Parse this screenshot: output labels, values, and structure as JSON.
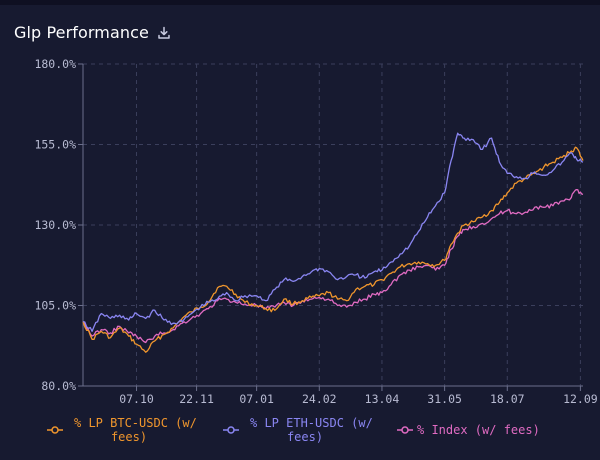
{
  "header": {
    "title": "Glp Performance",
    "download_icon": "download-icon"
  },
  "colors": {
    "background": "#171a30",
    "grid": "#3b3f5c",
    "axis_text": "#b8bbd2",
    "btc": "#f0962d",
    "eth": "#8a86f2",
    "index": "#e06bc2"
  },
  "chart_data": {
    "type": "line",
    "title": "",
    "xlabel": "",
    "ylabel": "",
    "ylim": [
      80,
      180
    ],
    "y_ticks": [
      "80.0%",
      "105.0%",
      "130.0%",
      "155.0%",
      "180.0%"
    ],
    "y_tick_values": [
      80,
      105,
      130,
      155,
      180
    ],
    "x_range": [
      "2021-08-27",
      "2022-09-14"
    ],
    "x_ticks": [
      {
        "date": "2021-10-07",
        "label": "07.10"
      },
      {
        "date": "2021-11-22",
        "label": "22.11"
      },
      {
        "date": "2022-01-07",
        "label": "07.01"
      },
      {
        "date": "2022-02-24",
        "label": "24.02"
      },
      {
        "date": "2022-04-13",
        "label": "13.04"
      },
      {
        "date": "2022-05-31",
        "label": "31.05"
      },
      {
        "date": "2022-07-18",
        "label": "18.07"
      },
      {
        "date": "2022-09-12",
        "label": "12.09"
      }
    ],
    "grid": true,
    "legend": "bottom",
    "series": [
      {
        "name": "% LP BTC-USDC (w/ fees)",
        "legend_lines": [
          "% LP BTC-USDC (w/",
          "fees)"
        ],
        "color": "#f0962d",
        "points": [
          [
            "2021-08-27",
            100.0
          ],
          [
            "2021-09-03",
            94.5
          ],
          [
            "2021-09-10",
            97.0
          ],
          [
            "2021-09-17",
            95.0
          ],
          [
            "2021-09-24",
            98.0
          ],
          [
            "2021-10-01",
            95.5
          ],
          [
            "2021-10-07",
            93.0
          ],
          [
            "2021-10-14",
            90.5
          ],
          [
            "2021-10-21",
            94.0
          ],
          [
            "2021-10-28",
            96.0
          ],
          [
            "2021-11-04",
            98.0
          ],
          [
            "2021-11-11",
            101.0
          ],
          [
            "2021-11-18",
            103.0
          ],
          [
            "2021-11-25",
            104.5
          ],
          [
            "2021-12-01",
            106.0
          ],
          [
            "2021-12-08",
            110.5
          ],
          [
            "2021-12-15",
            111.0
          ],
          [
            "2021-12-22",
            108.5
          ],
          [
            "2021-12-29",
            106.0
          ],
          [
            "2022-01-07",
            105.0
          ],
          [
            "2022-01-14",
            104.0
          ],
          [
            "2022-01-21",
            103.5
          ],
          [
            "2022-01-28",
            107.0
          ],
          [
            "2022-02-04",
            105.5
          ],
          [
            "2022-02-11",
            106.5
          ],
          [
            "2022-02-18",
            107.5
          ],
          [
            "2022-02-24",
            108.0
          ],
          [
            "2022-03-03",
            109.0
          ],
          [
            "2022-03-10",
            107.0
          ],
          [
            "2022-03-17",
            106.5
          ],
          [
            "2022-03-24",
            110.0
          ],
          [
            "2022-03-31",
            111.0
          ],
          [
            "2022-04-07",
            111.5
          ],
          [
            "2022-04-13",
            113.0
          ],
          [
            "2022-04-20",
            115.0
          ],
          [
            "2022-04-27",
            117.0
          ],
          [
            "2022-05-04",
            118.0
          ],
          [
            "2022-05-11",
            118.5
          ],
          [
            "2022-05-18",
            118.0
          ],
          [
            "2022-05-24",
            117.5
          ],
          [
            "2022-05-31",
            119.0
          ],
          [
            "2022-06-05",
            124.0
          ],
          [
            "2022-06-10",
            127.5
          ],
          [
            "2022-06-15",
            130.0
          ],
          [
            "2022-06-22",
            131.0
          ],
          [
            "2022-06-29",
            132.5
          ],
          [
            "2022-07-06",
            134.5
          ],
          [
            "2022-07-12",
            137.0
          ],
          [
            "2022-07-18",
            140.0
          ],
          [
            "2022-07-25",
            143.0
          ],
          [
            "2022-08-01",
            144.5
          ],
          [
            "2022-08-08",
            146.0
          ],
          [
            "2022-08-15",
            148.0
          ],
          [
            "2022-08-22",
            149.5
          ],
          [
            "2022-08-29",
            151.0
          ],
          [
            "2022-09-05",
            153.0
          ],
          [
            "2022-09-09",
            154.0
          ],
          [
            "2022-09-14",
            150.0
          ]
        ]
      },
      {
        "name": "% LP ETH-USDC (w/ fees)",
        "legend_lines": [
          "% LP ETH-USDC (w/",
          "fees)"
        ],
        "color": "#8a86f2",
        "points": [
          [
            "2021-08-27",
            100.0
          ],
          [
            "2021-09-03",
            97.0
          ],
          [
            "2021-09-10",
            102.5
          ],
          [
            "2021-09-17",
            101.0
          ],
          [
            "2021-09-24",
            102.0
          ],
          [
            "2021-10-01",
            100.5
          ],
          [
            "2021-10-07",
            102.5
          ],
          [
            "2021-10-14",
            101.0
          ],
          [
            "2021-10-21",
            103.5
          ],
          [
            "2021-10-28",
            100.5
          ],
          [
            "2021-11-04",
            99.5
          ],
          [
            "2021-11-11",
            100.0
          ],
          [
            "2021-11-18",
            102.5
          ],
          [
            "2021-11-25",
            104.5
          ],
          [
            "2021-12-01",
            106.0
          ],
          [
            "2021-12-08",
            107.0
          ],
          [
            "2021-12-15",
            109.0
          ],
          [
            "2021-12-22",
            106.5
          ],
          [
            "2021-12-29",
            108.0
          ],
          [
            "2022-01-07",
            108.0
          ],
          [
            "2022-01-14",
            106.5
          ],
          [
            "2022-01-21",
            110.0
          ],
          [
            "2022-01-28",
            113.0
          ],
          [
            "2022-02-04",
            112.5
          ],
          [
            "2022-02-11",
            114.0
          ],
          [
            "2022-02-18",
            115.5
          ],
          [
            "2022-02-24",
            116.5
          ],
          [
            "2022-03-03",
            115.5
          ],
          [
            "2022-03-10",
            113.0
          ],
          [
            "2022-03-17",
            114.0
          ],
          [
            "2022-03-24",
            114.5
          ],
          [
            "2022-03-31",
            113.5
          ],
          [
            "2022-04-07",
            115.5
          ],
          [
            "2022-04-13",
            116.0
          ],
          [
            "2022-04-20",
            118.5
          ],
          [
            "2022-04-27",
            121.0
          ],
          [
            "2022-05-04",
            123.5
          ],
          [
            "2022-05-11",
            128.0
          ],
          [
            "2022-05-18",
            132.5
          ],
          [
            "2022-05-24",
            136.0
          ],
          [
            "2022-05-31",
            140.0
          ],
          [
            "2022-06-05",
            150.0
          ],
          [
            "2022-06-10",
            158.5
          ],
          [
            "2022-06-15",
            157.0
          ],
          [
            "2022-06-22",
            156.5
          ],
          [
            "2022-06-29",
            153.5
          ],
          [
            "2022-07-06",
            157.0
          ],
          [
            "2022-07-12",
            149.5
          ],
          [
            "2022-07-18",
            146.0
          ],
          [
            "2022-07-25",
            145.0
          ],
          [
            "2022-08-01",
            144.5
          ],
          [
            "2022-08-08",
            146.5
          ],
          [
            "2022-08-15",
            145.5
          ],
          [
            "2022-08-22",
            147.0
          ],
          [
            "2022-08-29",
            149.5
          ],
          [
            "2022-09-05",
            152.5
          ],
          [
            "2022-09-09",
            150.5
          ],
          [
            "2022-09-14",
            149.5
          ]
        ]
      },
      {
        "name": "% Index (w/ fees)",
        "legend_lines": [
          "% Index (w/ fees)"
        ],
        "color": "#e06bc2",
        "points": [
          [
            "2021-08-27",
            100.0
          ],
          [
            "2021-09-03",
            95.5
          ],
          [
            "2021-09-10",
            97.5
          ],
          [
            "2021-09-17",
            96.5
          ],
          [
            "2021-09-24",
            98.5
          ],
          [
            "2021-10-01",
            96.5
          ],
          [
            "2021-10-07",
            95.5
          ],
          [
            "2021-10-14",
            93.5
          ],
          [
            "2021-10-21",
            95.5
          ],
          [
            "2021-10-28",
            96.5
          ],
          [
            "2021-11-04",
            97.5
          ],
          [
            "2021-11-11",
            99.5
          ],
          [
            "2021-11-18",
            101.0
          ],
          [
            "2021-11-25",
            102.5
          ],
          [
            "2021-12-01",
            104.0
          ],
          [
            "2021-12-08",
            106.5
          ],
          [
            "2021-12-15",
            107.0
          ],
          [
            "2021-12-22",
            106.0
          ],
          [
            "2021-12-29",
            105.5
          ],
          [
            "2022-01-07",
            105.0
          ],
          [
            "2022-01-14",
            104.0
          ],
          [
            "2022-01-21",
            104.5
          ],
          [
            "2022-01-28",
            106.0
          ],
          [
            "2022-02-04",
            105.0
          ],
          [
            "2022-02-11",
            106.5
          ],
          [
            "2022-02-18",
            107.0
          ],
          [
            "2022-02-24",
            107.5
          ],
          [
            "2022-03-03",
            107.0
          ],
          [
            "2022-03-10",
            105.0
          ],
          [
            "2022-03-17",
            104.5
          ],
          [
            "2022-03-24",
            106.0
          ],
          [
            "2022-03-31",
            107.0
          ],
          [
            "2022-04-07",
            108.5
          ],
          [
            "2022-04-13",
            109.0
          ],
          [
            "2022-04-20",
            111.5
          ],
          [
            "2022-04-27",
            114.5
          ],
          [
            "2022-05-04",
            116.0
          ],
          [
            "2022-05-11",
            117.0
          ],
          [
            "2022-05-18",
            117.5
          ],
          [
            "2022-05-24",
            116.0
          ],
          [
            "2022-05-31",
            117.5
          ],
          [
            "2022-06-05",
            122.5
          ],
          [
            "2022-06-10",
            126.5
          ],
          [
            "2022-06-15",
            128.5
          ],
          [
            "2022-06-22",
            129.5
          ],
          [
            "2022-06-29",
            130.5
          ],
          [
            "2022-07-06",
            132.0
          ],
          [
            "2022-07-12",
            133.5
          ],
          [
            "2022-07-18",
            134.5
          ],
          [
            "2022-07-25",
            133.5
          ],
          [
            "2022-08-01",
            134.0
          ],
          [
            "2022-08-08",
            135.5
          ],
          [
            "2022-08-15",
            135.5
          ],
          [
            "2022-08-22",
            136.0
          ],
          [
            "2022-08-29",
            137.5
          ],
          [
            "2022-09-05",
            138.5
          ],
          [
            "2022-09-09",
            141.0
          ],
          [
            "2022-09-14",
            139.5
          ]
        ]
      }
    ]
  }
}
